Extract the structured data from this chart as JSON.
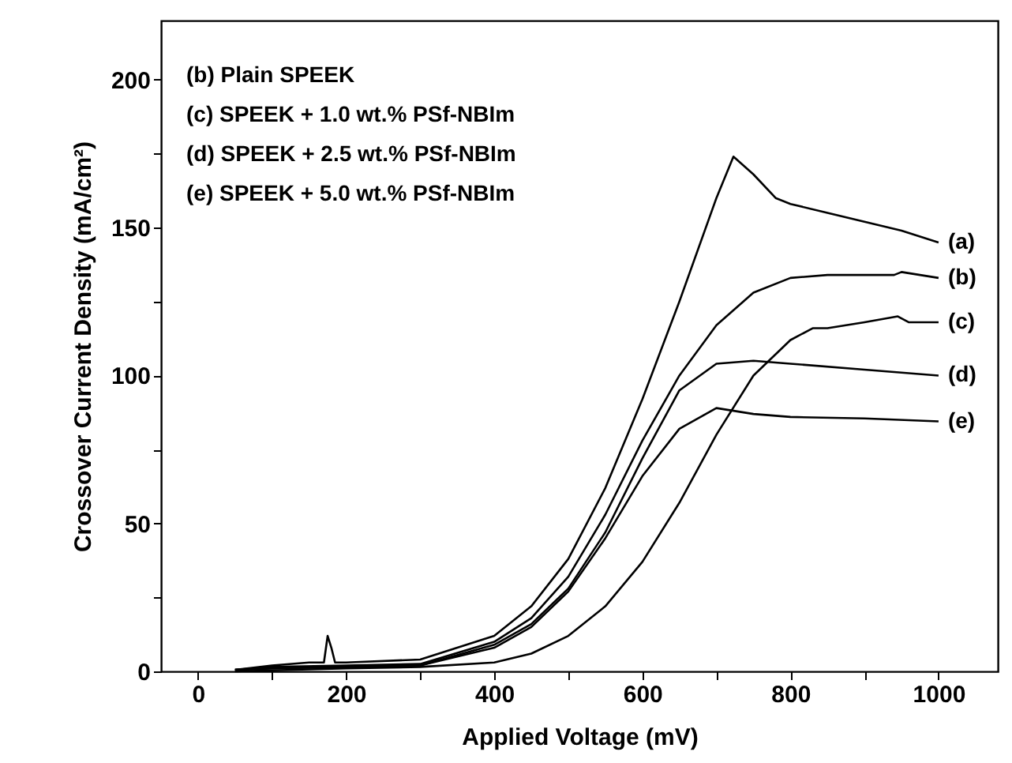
{
  "chart_data": {
    "type": "line",
    "xlabel": "Applied Voltage (mV)",
    "ylabel": "Crossover Current Density (mA/cm²)",
    "annotations": [
      "(b) Plain SPEEK",
      "(c) SPEEK + 1.0 wt.% PSf-NBIm",
      "(d) SPEEK + 2.5 wt.% PSf-NBIm",
      "(e) SPEEK + 5.0 wt.% PSf-NBIm"
    ],
    "xlim": [
      -50,
      1080
    ],
    "ylim": [
      0,
      220
    ],
    "xticks": [
      0,
      {
        "value": 100,
        "label": null
      },
      200,
      {
        "value": 300,
        "label": null
      },
      400,
      {
        "value": 500,
        "label": null
      },
      600,
      {
        "value": 700,
        "label": null
      },
      800,
      {
        "value": 900,
        "label": null
      },
      1000
    ],
    "yticks": [
      0,
      {
        "value": 25,
        "label": null
      },
      50,
      {
        "value": 75,
        "label": null
      },
      100,
      {
        "value": 125,
        "label": null
      },
      150,
      {
        "value": 175,
        "label": null
      },
      200
    ],
    "grid": false,
    "marker": "none",
    "line_style": "solid",
    "series": [
      {
        "name": "(a)",
        "color": "#000000",
        "x": [
          50,
          100,
          150,
          170,
          175,
          180,
          185,
          200,
          300,
          400,
          450,
          500,
          550,
          600,
          650,
          700,
          723,
          750,
          780,
          800,
          850,
          900,
          950,
          1000
        ],
        "values": [
          0.5,
          2,
          3,
          3,
          12,
          8,
          3,
          3,
          4,
          12,
          22,
          38,
          62,
          92,
          125,
          160,
          174,
          168,
          160,
          158,
          155,
          152,
          149,
          145
        ]
      },
      {
        "name": "(b)",
        "color": "#000000",
        "x": [
          50,
          100,
          200,
          300,
          400,
          450,
          500,
          550,
          600,
          650,
          700,
          750,
          800,
          850,
          900,
          940,
          950,
          1000
        ],
        "values": [
          0.5,
          1.5,
          2,
          2.5,
          10,
          18,
          32,
          53,
          78,
          100,
          117,
          128,
          133,
          134,
          134,
          134,
          135,
          133
        ]
      },
      {
        "name": "(c)",
        "color": "#000000",
        "x": [
          50,
          200,
          300,
          400,
          450,
          500,
          550,
          600,
          650,
          700,
          750,
          800,
          830,
          850,
          900,
          945,
          960,
          1000
        ],
        "values": [
          0,
          1,
          1.5,
          3,
          6,
          12,
          22,
          37,
          57,
          80,
          100,
          112,
          116,
          116,
          118,
          120,
          118,
          118
        ]
      },
      {
        "name": "(d)",
        "color": "#000000",
        "x": [
          50,
          100,
          200,
          300,
          400,
          450,
          500,
          550,
          600,
          650,
          700,
          750,
          800,
          900,
          1000
        ],
        "values": [
          0.5,
          1,
          1.5,
          2,
          9,
          16,
          28,
          47,
          72,
          95,
          104,
          105,
          104,
          102,
          100
        ]
      },
      {
        "name": "(e)",
        "color": "#000000",
        "x": [
          50,
          100,
          200,
          300,
          400,
          450,
          500,
          550,
          600,
          650,
          700,
          750,
          800,
          900,
          1000
        ],
        "values": [
          0.5,
          1,
          1.5,
          2,
          8,
          15,
          27,
          45,
          66,
          82,
          89,
          87,
          86,
          85.5,
          84.5
        ]
      }
    ]
  }
}
